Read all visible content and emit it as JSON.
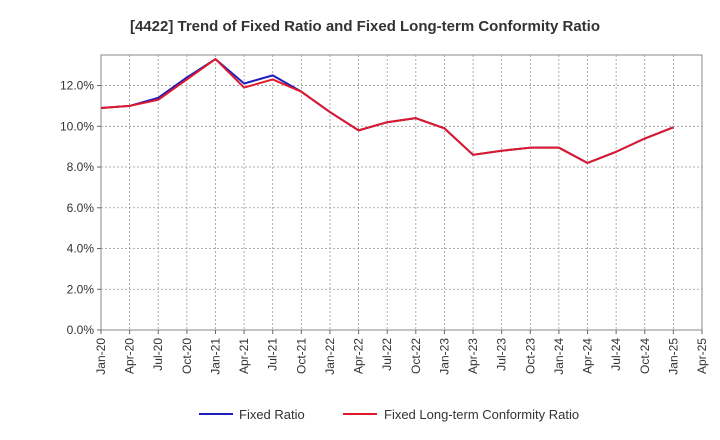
{
  "chart_data": {
    "type": "line",
    "title": "[4422]  Trend of Fixed Ratio and Fixed Long-term Conformity Ratio",
    "xlabel": "",
    "ylabel": "",
    "x": [
      "Jan-20",
      "Apr-20",
      "Jul-20",
      "Oct-20",
      "Jan-21",
      "Apr-21",
      "Jul-21",
      "Oct-21",
      "Jan-22",
      "Apr-22",
      "Jul-22",
      "Oct-22",
      "Jan-23",
      "Apr-23",
      "Jul-23",
      "Oct-23",
      "Jan-24",
      "Apr-24",
      "Jul-24",
      "Oct-24",
      "Jan-25"
    ],
    "xticks": [
      "Jan-20",
      "Apr-20",
      "Jul-20",
      "Oct-20",
      "Jan-21",
      "Apr-21",
      "Jul-21",
      "Oct-21",
      "Jan-22",
      "Apr-22",
      "Jul-22",
      "Oct-22",
      "Jan-23",
      "Apr-23",
      "Jul-23",
      "Oct-23",
      "Jan-24",
      "Apr-24",
      "Jul-24",
      "Oct-24",
      "Jan-25",
      "Apr-25"
    ],
    "yticks": [
      "0.0%",
      "2.0%",
      "4.0%",
      "6.0%",
      "8.0%",
      "10.0%",
      "12.0%"
    ],
    "ylim": [
      0,
      13.5
    ],
    "grid": true,
    "legend_position": "bottom",
    "series": [
      {
        "name": "Fixed Ratio",
        "color": "#1f1fbf",
        "values": [
          10.9,
          11.0,
          11.4,
          12.4,
          13.3,
          12.1,
          12.5,
          11.7,
          10.7,
          9.8,
          10.2,
          10.4,
          9.9,
          8.6,
          8.8,
          8.95,
          8.95,
          8.2,
          8.75,
          9.4,
          9.95
        ]
      },
      {
        "name": "Fixed Long-term Conformity Ratio",
        "color": "#e0192a",
        "values": [
          10.9,
          11.0,
          11.3,
          12.3,
          13.3,
          11.9,
          12.3,
          11.7,
          10.7,
          9.8,
          10.2,
          10.4,
          9.9,
          8.6,
          8.8,
          8.95,
          8.95,
          8.2,
          8.75,
          9.4,
          9.95
        ]
      }
    ]
  }
}
